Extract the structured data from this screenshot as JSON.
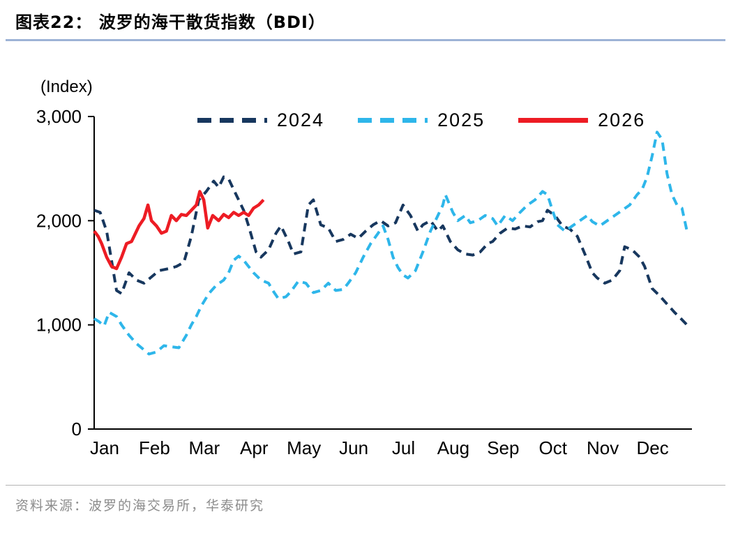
{
  "header": {
    "title": "图表22：  波罗的海干散货指数（BDI）"
  },
  "footer": {
    "source": "资料来源：波罗的海交易所，华泰研究"
  },
  "colors": {
    "title_underline": "#9DB3D6",
    "footer_divider": "#B3B3B3",
    "source_text": "#8C8C8C",
    "axis": "#000000"
  },
  "chart_data": {
    "type": "line",
    "title": "波罗的海干散货指数（BDI）",
    "unit_label": "(Index)",
    "grid": false,
    "legend_position": "top-inside",
    "ylim": [
      0,
      3000
    ],
    "yticks": [
      {
        "value": 0,
        "label": "0"
      },
      {
        "value": 1000,
        "label": "1,000"
      },
      {
        "value": 2000,
        "label": "2,000"
      },
      {
        "value": 3000,
        "label": "3,000"
      }
    ],
    "x_categories": [
      "Jan",
      "Feb",
      "Mar",
      "Apr",
      "May",
      "Jun",
      "Jul",
      "Aug",
      "Sep",
      "Oct",
      "Nov",
      "Dec"
    ],
    "series": [
      {
        "name": "2024",
        "color": "#17375E",
        "dashed": true,
        "points": [
          [
            0.0,
            2100
          ],
          [
            0.12,
            2080
          ],
          [
            0.25,
            1900
          ],
          [
            0.45,
            1330
          ],
          [
            0.55,
            1300
          ],
          [
            0.7,
            1500
          ],
          [
            0.85,
            1430
          ],
          [
            1.0,
            1400
          ],
          [
            1.15,
            1460
          ],
          [
            1.3,
            1520
          ],
          [
            1.5,
            1540
          ],
          [
            1.65,
            1560
          ],
          [
            1.8,
            1600
          ],
          [
            1.95,
            1850
          ],
          [
            2.1,
            2200
          ],
          [
            2.25,
            2280
          ],
          [
            2.4,
            2380
          ],
          [
            2.5,
            2320
          ],
          [
            2.6,
            2420
          ],
          [
            2.7,
            2400
          ],
          [
            2.85,
            2250
          ],
          [
            3.0,
            2100
          ],
          [
            3.1,
            1950
          ],
          [
            3.25,
            1700
          ],
          [
            3.35,
            1650
          ],
          [
            3.5,
            1720
          ],
          [
            3.65,
            1880
          ],
          [
            3.75,
            1950
          ],
          [
            3.9,
            1800
          ],
          [
            4.0,
            1680
          ],
          [
            4.15,
            1700
          ],
          [
            4.3,
            2150
          ],
          [
            4.4,
            2200
          ],
          [
            4.55,
            1960
          ],
          [
            4.7,
            1930
          ],
          [
            4.85,
            1800
          ],
          [
            5.0,
            1820
          ],
          [
            5.15,
            1870
          ],
          [
            5.3,
            1830
          ],
          [
            5.45,
            1900
          ],
          [
            5.6,
            1960
          ],
          [
            5.75,
            2000
          ],
          [
            5.9,
            1950
          ],
          [
            6.05,
            1980
          ],
          [
            6.2,
            2150
          ],
          [
            6.35,
            2050
          ],
          [
            6.5,
            1900
          ],
          [
            6.6,
            1960
          ],
          [
            6.75,
            2000
          ],
          [
            6.9,
            1900
          ],
          [
            7.0,
            1950
          ],
          [
            7.15,
            1800
          ],
          [
            7.3,
            1720
          ],
          [
            7.45,
            1680
          ],
          [
            7.6,
            1670
          ],
          [
            7.75,
            1700
          ],
          [
            7.9,
            1780
          ],
          [
            8.0,
            1800
          ],
          [
            8.15,
            1880
          ],
          [
            8.3,
            1930
          ],
          [
            8.45,
            1920
          ],
          [
            8.6,
            1950
          ],
          [
            8.75,
            1940
          ],
          [
            8.9,
            1990
          ],
          [
            9.0,
            2000
          ],
          [
            9.1,
            2100
          ],
          [
            9.25,
            2050
          ],
          [
            9.4,
            1950
          ],
          [
            9.55,
            1920
          ],
          [
            9.7,
            1850
          ],
          [
            9.85,
            1680
          ],
          [
            10.0,
            1500
          ],
          [
            10.1,
            1450
          ],
          [
            10.25,
            1400
          ],
          [
            10.4,
            1430
          ],
          [
            10.55,
            1520
          ],
          [
            10.65,
            1750
          ],
          [
            10.8,
            1720
          ],
          [
            10.95,
            1650
          ],
          [
            11.05,
            1560
          ],
          [
            11.2,
            1350
          ],
          [
            11.35,
            1280
          ],
          [
            11.5,
            1200
          ],
          [
            11.65,
            1120
          ],
          [
            11.8,
            1050
          ],
          [
            11.9,
            1000
          ]
        ]
      },
      {
        "name": "2025",
        "color": "#2EB6EA",
        "dashed": true,
        "points": [
          [
            0.0,
            1060
          ],
          [
            0.1,
            1030
          ],
          [
            0.2,
            990
          ],
          [
            0.3,
            1120
          ],
          [
            0.45,
            1080
          ],
          [
            0.55,
            1000
          ],
          [
            0.7,
            900
          ],
          [
            0.85,
            820
          ],
          [
            1.0,
            760
          ],
          [
            1.1,
            720
          ],
          [
            1.25,
            740
          ],
          [
            1.4,
            800
          ],
          [
            1.55,
            790
          ],
          [
            1.7,
            780
          ],
          [
            1.85,
            900
          ],
          [
            1.95,
            1000
          ],
          [
            2.05,
            1080
          ],
          [
            2.15,
            1180
          ],
          [
            2.3,
            1300
          ],
          [
            2.45,
            1380
          ],
          [
            2.6,
            1430
          ],
          [
            2.7,
            1500
          ],
          [
            2.8,
            1620
          ],
          [
            2.9,
            1660
          ],
          [
            3.0,
            1620
          ],
          [
            3.1,
            1560
          ],
          [
            3.2,
            1500
          ],
          [
            3.35,
            1430
          ],
          [
            3.5,
            1400
          ],
          [
            3.6,
            1320
          ],
          [
            3.7,
            1250
          ],
          [
            3.85,
            1270
          ],
          [
            3.95,
            1320
          ],
          [
            4.1,
            1420
          ],
          [
            4.25,
            1400
          ],
          [
            4.4,
            1310
          ],
          [
            4.55,
            1330
          ],
          [
            4.7,
            1400
          ],
          [
            4.85,
            1330
          ],
          [
            5.0,
            1340
          ],
          [
            5.1,
            1400
          ],
          [
            5.25,
            1500
          ],
          [
            5.4,
            1650
          ],
          [
            5.55,
            1780
          ],
          [
            5.7,
            1880
          ],
          [
            5.8,
            1950
          ],
          [
            5.9,
            1820
          ],
          [
            6.0,
            1650
          ],
          [
            6.1,
            1550
          ],
          [
            6.2,
            1480
          ],
          [
            6.3,
            1450
          ],
          [
            6.45,
            1520
          ],
          [
            6.6,
            1700
          ],
          [
            6.75,
            1900
          ],
          [
            6.9,
            2050
          ],
          [
            7.0,
            2150
          ],
          [
            7.05,
            2250
          ],
          [
            7.2,
            2080
          ],
          [
            7.3,
            2000
          ],
          [
            7.45,
            2050
          ],
          [
            7.55,
            1980
          ],
          [
            7.7,
            2000
          ],
          [
            7.85,
            2050
          ],
          [
            8.0,
            2020
          ],
          [
            8.1,
            1950
          ],
          [
            8.25,
            2050
          ],
          [
            8.4,
            2000
          ],
          [
            8.55,
            2080
          ],
          [
            8.7,
            2150
          ],
          [
            8.85,
            2200
          ],
          [
            9.0,
            2280
          ],
          [
            9.1,
            2250
          ],
          [
            9.2,
            2100
          ],
          [
            9.3,
            1960
          ],
          [
            9.45,
            1900
          ],
          [
            9.6,
            1950
          ],
          [
            9.75,
            2000
          ],
          [
            9.9,
            2050
          ],
          [
            10.0,
            1990
          ],
          [
            10.15,
            1950
          ],
          [
            10.3,
            2000
          ],
          [
            10.45,
            2050
          ],
          [
            10.6,
            2100
          ],
          [
            10.75,
            2150
          ],
          [
            10.9,
            2250
          ],
          [
            11.0,
            2300
          ],
          [
            11.1,
            2420
          ],
          [
            11.2,
            2620
          ],
          [
            11.3,
            2850
          ],
          [
            11.4,
            2780
          ],
          [
            11.5,
            2450
          ],
          [
            11.6,
            2250
          ],
          [
            11.7,
            2150
          ],
          [
            11.8,
            2120
          ],
          [
            11.9,
            1900
          ]
        ]
      },
      {
        "name": "2026",
        "color": "#ED1C24",
        "dashed": false,
        "points": [
          [
            0.0,
            1900
          ],
          [
            0.08,
            1850
          ],
          [
            0.15,
            1780
          ],
          [
            0.25,
            1650
          ],
          [
            0.35,
            1560
          ],
          [
            0.45,
            1540
          ],
          [
            0.55,
            1650
          ],
          [
            0.65,
            1780
          ],
          [
            0.75,
            1800
          ],
          [
            0.9,
            1950
          ],
          [
            1.0,
            2020
          ],
          [
            1.08,
            2150
          ],
          [
            1.15,
            2000
          ],
          [
            1.25,
            1950
          ],
          [
            1.35,
            1880
          ],
          [
            1.45,
            1900
          ],
          [
            1.55,
            2050
          ],
          [
            1.65,
            2000
          ],
          [
            1.75,
            2060
          ],
          [
            1.85,
            2050
          ],
          [
            1.95,
            2100
          ],
          [
            2.05,
            2150
          ],
          [
            2.12,
            2280
          ],
          [
            2.2,
            2200
          ],
          [
            2.28,
            1930
          ],
          [
            2.38,
            2050
          ],
          [
            2.5,
            2000
          ],
          [
            2.6,
            2060
          ],
          [
            2.7,
            2030
          ],
          [
            2.8,
            2080
          ],
          [
            2.9,
            2050
          ],
          [
            3.0,
            2080
          ],
          [
            3.1,
            2050
          ],
          [
            3.2,
            2120
          ],
          [
            3.3,
            2150
          ],
          [
            3.4,
            2200
          ]
        ]
      }
    ]
  }
}
